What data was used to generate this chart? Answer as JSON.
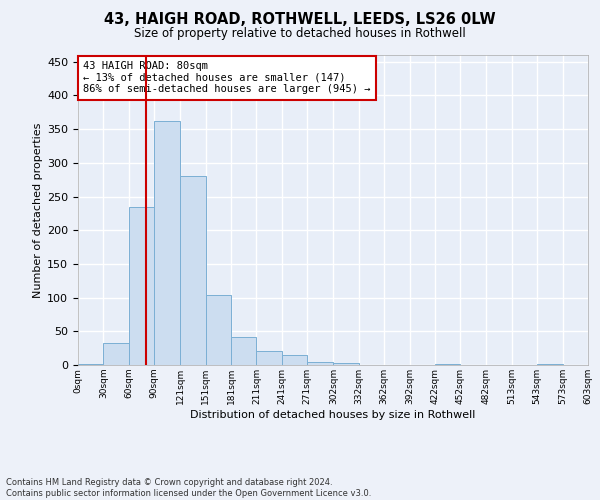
{
  "title": "43, HAIGH ROAD, ROTHWELL, LEEDS, LS26 0LW",
  "subtitle": "Size of property relative to detached houses in Rothwell",
  "xlabel": "Distribution of detached houses by size in Rothwell",
  "ylabel": "Number of detached properties",
  "bar_color": "#ccddf0",
  "bar_edge_color": "#7bafd4",
  "background_color": "#e8eef8",
  "grid_color": "#ffffff",
  "vline_x": 80,
  "vline_color": "#cc0000",
  "annotation_text": "43 HAIGH ROAD: 80sqm\n← 13% of detached houses are smaller (147)\n86% of semi-detached houses are larger (945) →",
  "annotation_box_color": "#ffffff",
  "annotation_box_edge_color": "#cc0000",
  "footnote": "Contains HM Land Registry data © Crown copyright and database right 2024.\nContains public sector information licensed under the Open Government Licence v3.0.",
  "bin_edges": [
    0,
    30,
    60,
    90,
    121,
    151,
    181,
    211,
    241,
    271,
    302,
    332,
    362,
    392,
    422,
    452,
    482,
    513,
    543,
    573,
    603
  ],
  "bin_labels": [
    "0sqm",
    "30sqm",
    "60sqm",
    "90sqm",
    "121sqm",
    "151sqm",
    "181sqm",
    "211sqm",
    "241sqm",
    "271sqm",
    "302sqm",
    "332sqm",
    "362sqm",
    "392sqm",
    "422sqm",
    "452sqm",
    "482sqm",
    "513sqm",
    "543sqm",
    "573sqm",
    "603sqm"
  ],
  "bar_heights": [
    2,
    33,
    234,
    362,
    280,
    104,
    41,
    21,
    15,
    5,
    3,
    0,
    0,
    0,
    2,
    0,
    0,
    0,
    1,
    0
  ],
  "ylim": [
    0,
    460
  ],
  "yticks": [
    0,
    50,
    100,
    150,
    200,
    250,
    300,
    350,
    400,
    450
  ]
}
